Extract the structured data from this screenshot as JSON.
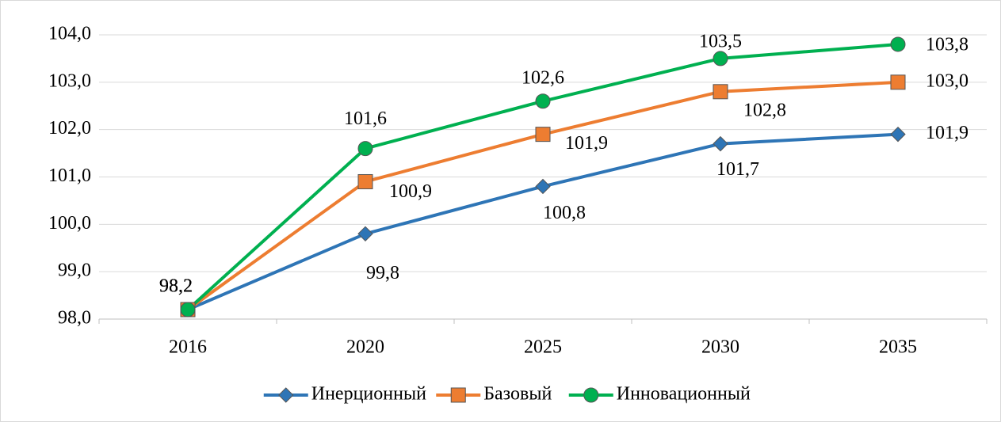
{
  "chart_data": {
    "type": "line",
    "categories": [
      "2016",
      "2020",
      "2025",
      "2030",
      "2035"
    ],
    "series": [
      {
        "name": "Инерционный",
        "color": "#2e75b6",
        "marker": "diamond",
        "values": [
          98.2,
          99.8,
          100.8,
          101.7,
          101.9
        ],
        "value_labels": [
          "98,2",
          "99,8",
          "100,8",
          "101,7",
          "101,9"
        ]
      },
      {
        "name": "Базовый",
        "color": "#ed7d31",
        "marker": "square",
        "values": [
          98.2,
          100.9,
          101.9,
          102.8,
          103.0
        ],
        "value_labels": [
          "98,2",
          "100,9",
          "101,9",
          "102,8",
          "103,0"
        ]
      },
      {
        "name": "Инновационный",
        "color": "#00b050",
        "marker": "circle",
        "values": [
          98.2,
          101.6,
          102.6,
          103.5,
          103.8
        ],
        "value_labels": [
          "98,2",
          "101,6",
          "102,6",
          "103,5",
          "103,8"
        ]
      }
    ],
    "ylim": [
      98,
      104
    ],
    "yticks": [
      {
        "value": 98,
        "label": "98,0"
      },
      {
        "value": 99,
        "label": "99,0"
      },
      {
        "value": 100,
        "label": "100,0"
      },
      {
        "value": 101,
        "label": "101,0"
      },
      {
        "value": 102,
        "label": "102,0"
      },
      {
        "value": 103,
        "label": "103,0"
      },
      {
        "value": 104,
        "label": "104,0"
      }
    ],
    "grid": true,
    "legend": "bottom"
  }
}
